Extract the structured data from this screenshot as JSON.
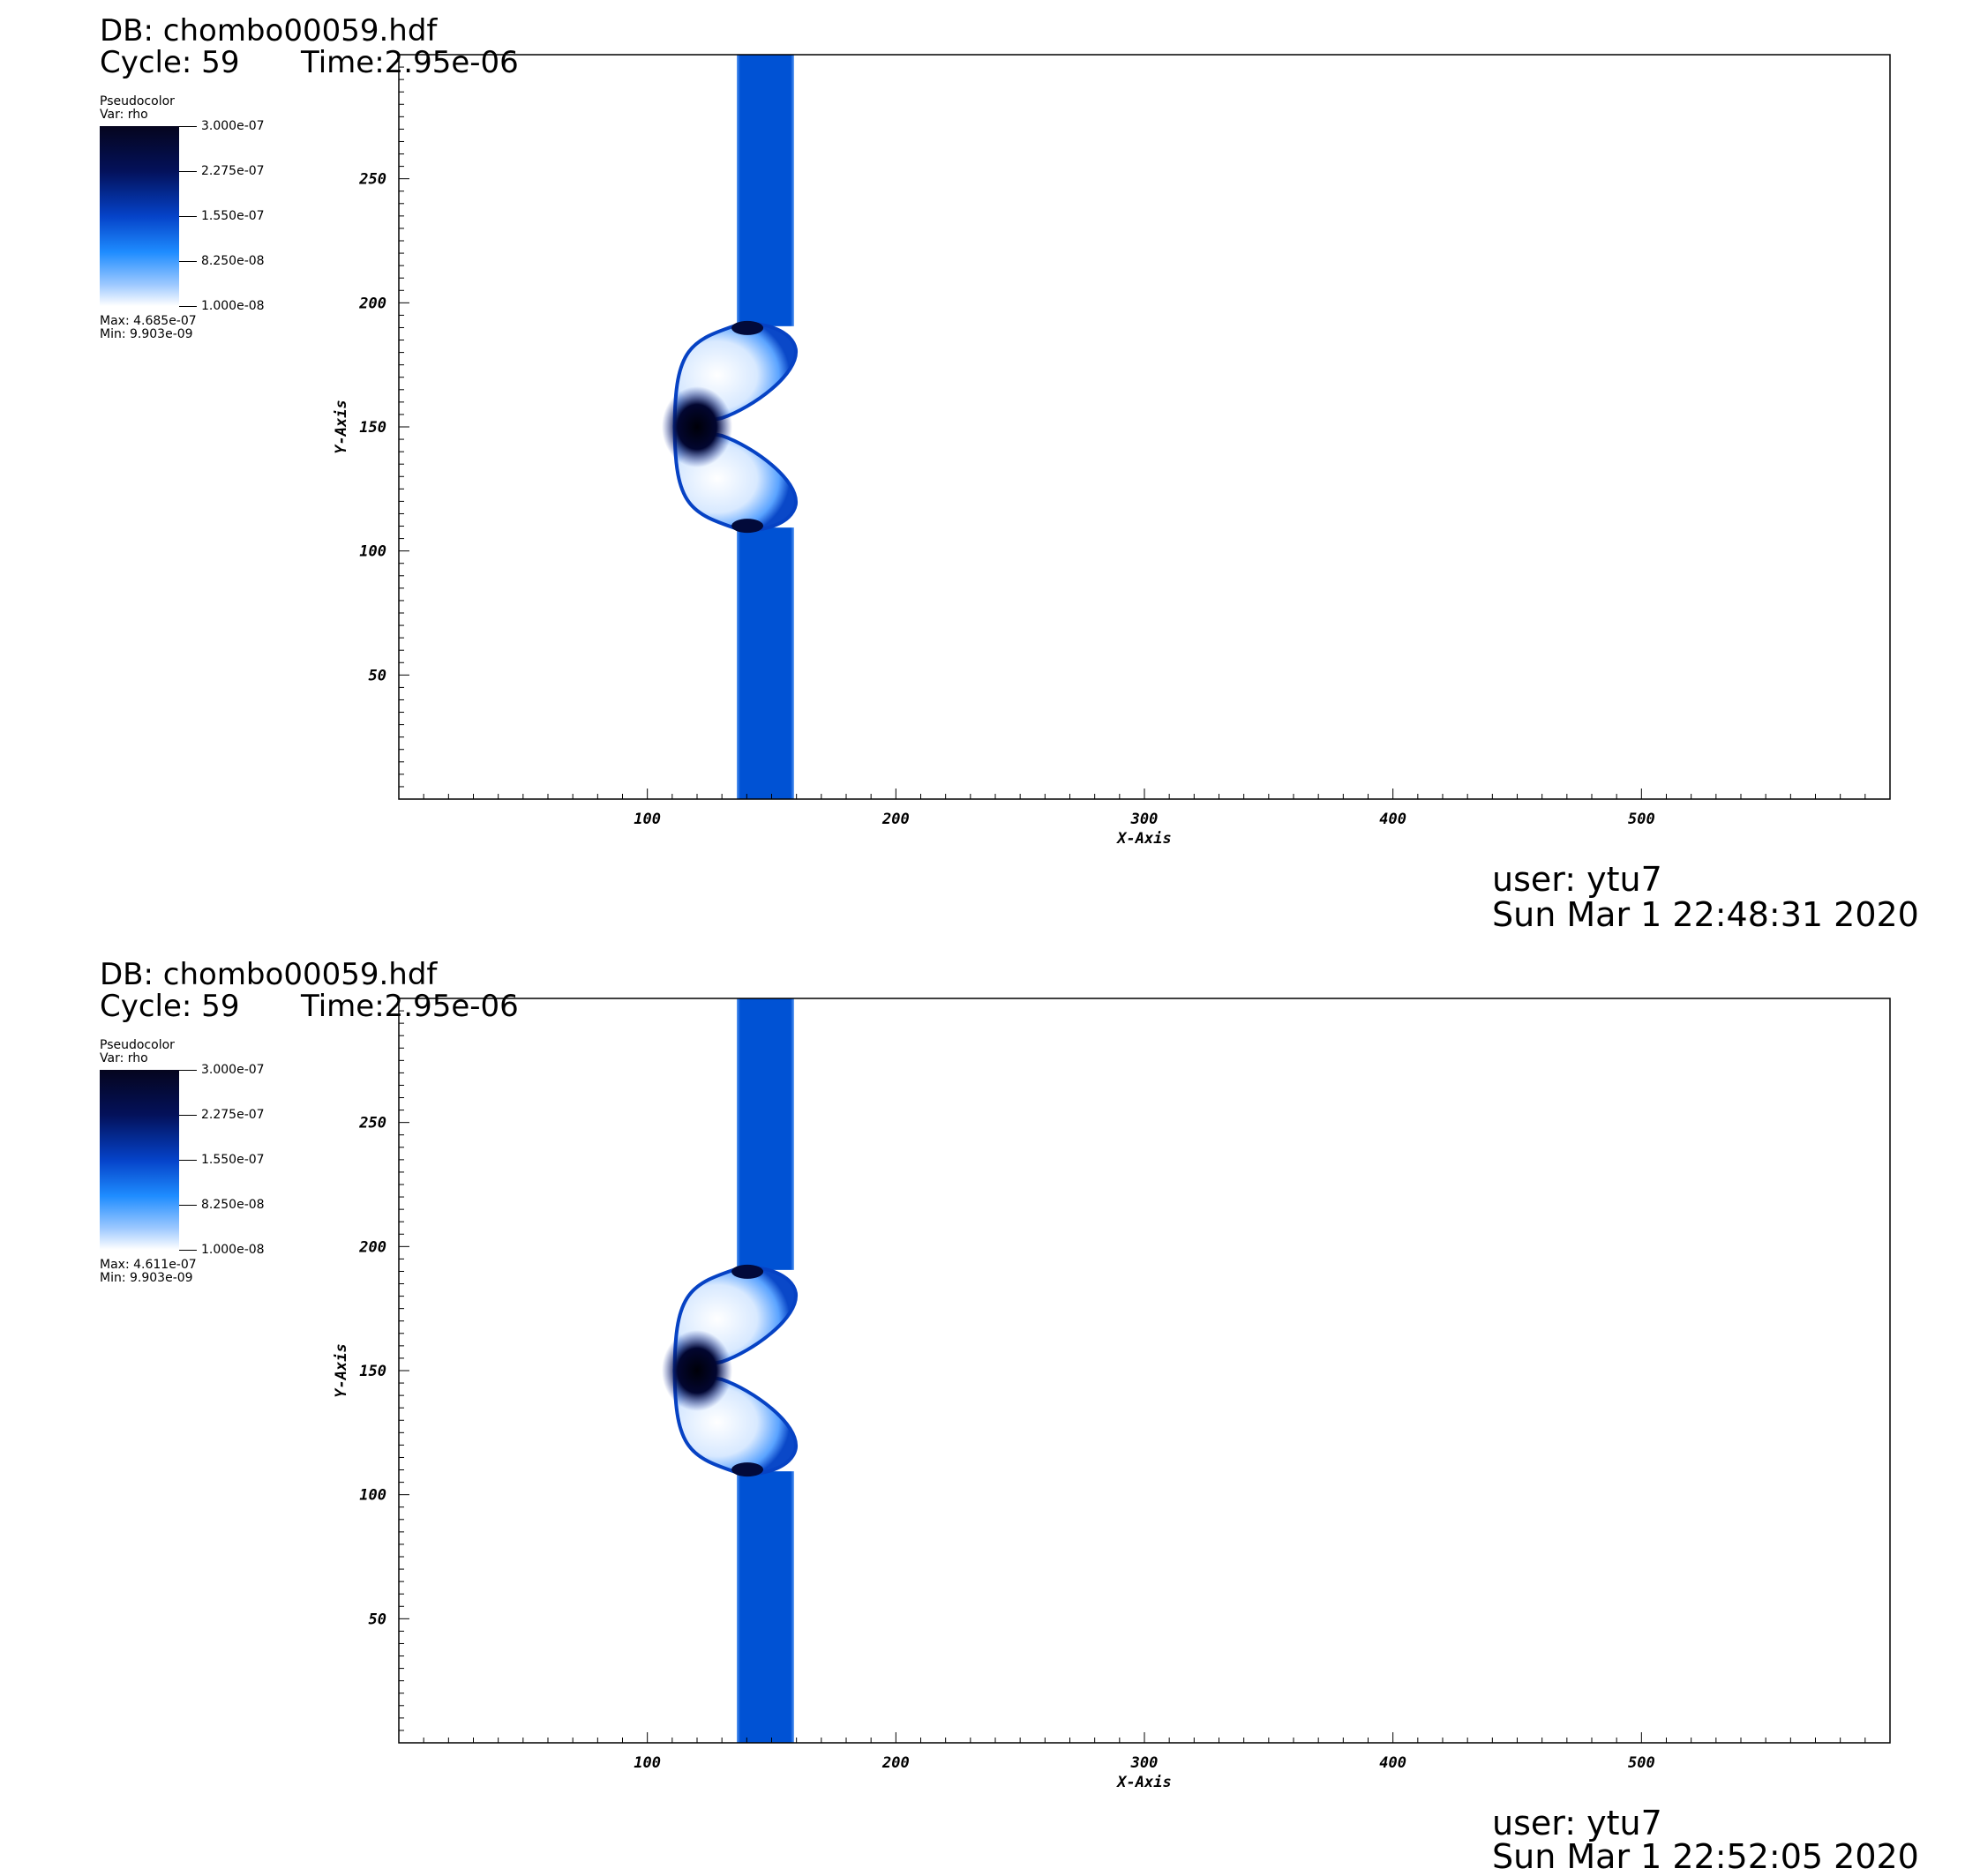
{
  "panels": [
    {
      "db_label": "DB: chombo00059.hdf",
      "cycle_label": "Cycle: 59",
      "time_label": "Time:2.95e-06",
      "legend": {
        "plot_type": "Pseudocolor",
        "var_label": "Var: rho",
        "ticks": [
          "3.000e-07",
          "2.275e-07",
          "1.550e-07",
          "8.250e-08",
          "1.000e-08"
        ],
        "max_label": "Max:  4.685e-07",
        "min_label": "Min:  9.903e-09"
      },
      "user_label": "user: ytu7",
      "date_label": "Sun Mar  1 22:48:31 2020"
    },
    {
      "db_label": "DB: chombo00059.hdf",
      "cycle_label": "Cycle: 59",
      "time_label": "Time:2.95e-06",
      "legend": {
        "plot_type": "Pseudocolor",
        "var_label": "Var: rho",
        "ticks": [
          "3.000e-07",
          "2.275e-07",
          "1.550e-07",
          "8.250e-08",
          "1.000e-08"
        ],
        "max_label": "Max:  4.611e-07",
        "min_label": "Min:  9.903e-09"
      },
      "user_label": "user: ytu7",
      "date_label": "Sun Mar  1 22:52:05 2020"
    }
  ],
  "chart_data": [
    {
      "type": "heatmap",
      "title": "",
      "xlabel": "X-Axis",
      "ylabel": "Y-Axis",
      "xlim": [
        0,
        600
      ],
      "ylim": [
        0,
        300
      ],
      "x_ticks": [
        100,
        200,
        300,
        400,
        500
      ],
      "y_ticks": [
        50,
        100,
        150,
        200,
        250
      ],
      "colorbar_range": [
        1e-08,
        3e-07
      ],
      "grid": false,
      "features": {
        "band_x": [
          136,
          159
        ],
        "shock_front_x_min": 111,
        "dense_core_center": [
          120,
          150
        ],
        "cap_y_range": [
          108,
          192
        ]
      }
    },
    {
      "type": "heatmap",
      "title": "",
      "xlabel": "X-Axis",
      "ylabel": "Y-Axis",
      "xlim": [
        0,
        600
      ],
      "ylim": [
        0,
        300
      ],
      "x_ticks": [
        100,
        200,
        300,
        400,
        500
      ],
      "y_ticks": [
        50,
        100,
        150,
        200,
        250
      ],
      "colorbar_range": [
        1e-08,
        3e-07
      ],
      "grid": false,
      "features": {
        "band_x": [
          136,
          159
        ],
        "shock_front_x_min": 111,
        "dense_core_center": [
          120,
          150
        ],
        "cap_y_range": [
          108,
          192
        ]
      }
    }
  ]
}
